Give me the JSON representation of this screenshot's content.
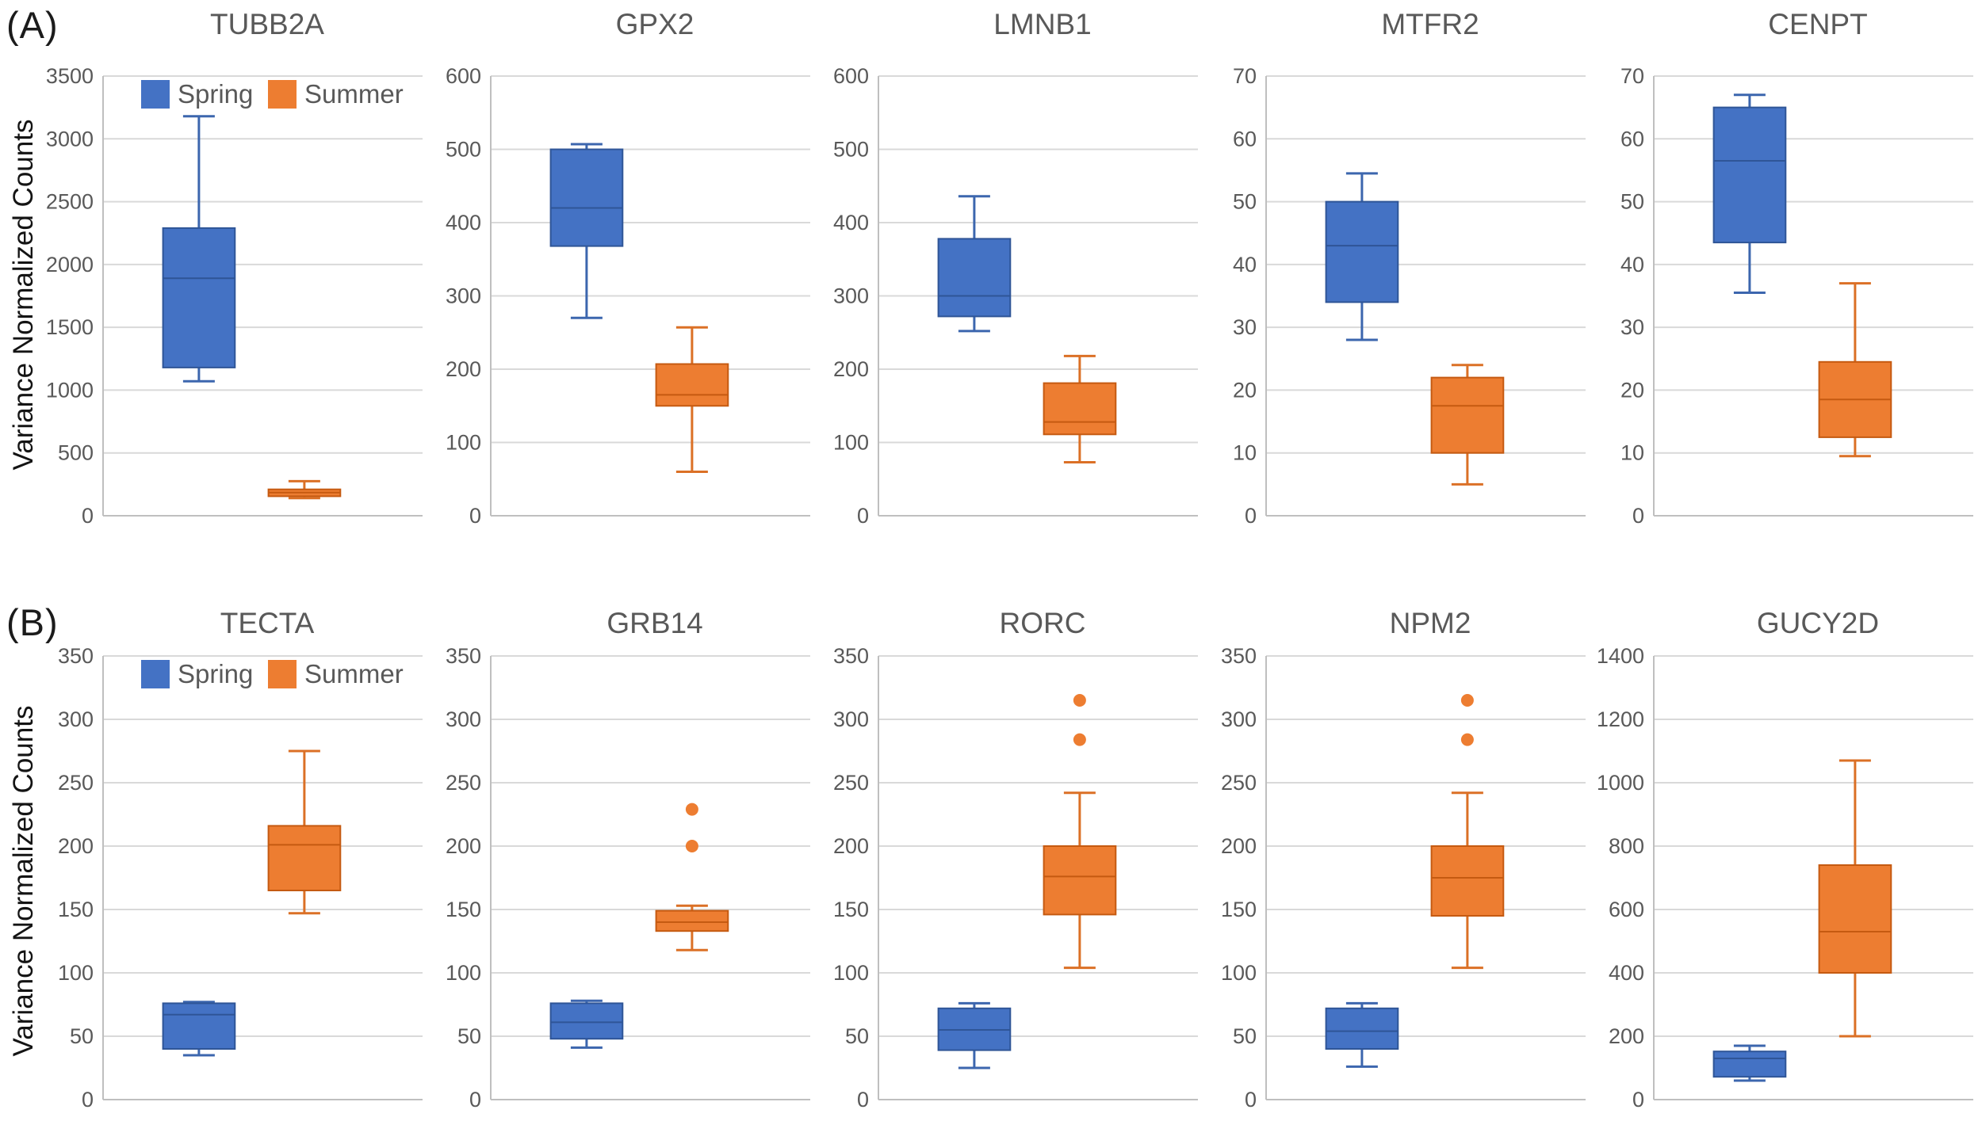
{
  "figure": {
    "description": "Box plots of variance normalized counts for ten genes, Spring vs Summer",
    "background": "#ffffff"
  },
  "legend": {
    "spring_label": "Spring",
    "summer_label": "Summer"
  },
  "colors": {
    "spring_fill": "#4472C4",
    "spring_stroke": "#2F5597",
    "spring_whisker": "#3C66AE",
    "summer_fill": "#ED7D31",
    "summer_stroke": "#C55A11",
    "summer_whisker": "#DB7026",
    "gridline": "#D9D9D9",
    "axis_line": "#BFBFBF",
    "tick_text": "#595959",
    "title_text": "#595959",
    "panel_text": "#1b1b1b"
  },
  "rows": {
    "a": {
      "panel_label": "(A)",
      "y_axis_label": "Variance Normalized Counts"
    },
    "b": {
      "panel_label": "(B)",
      "y_axis_label": "Variance Normalized Counts"
    }
  },
  "chart_data": [
    {
      "type": "box",
      "row": "a",
      "title": "TUBB2A",
      "ymin": 0,
      "ymax": 3500,
      "ystep": 500,
      "grid": true,
      "legend": true,
      "legend_position": "top-left",
      "categories": [
        "Spring",
        "Summer"
      ],
      "series": [
        {
          "name": "Spring",
          "min": 1070,
          "q1": 1180,
          "median": 1890,
          "q3": 2290,
          "max": 3180,
          "outliers": []
        },
        {
          "name": "Summer",
          "min": 140,
          "q1": 155,
          "median": 185,
          "q3": 210,
          "max": 275,
          "outliers": []
        }
      ]
    },
    {
      "type": "box",
      "row": "a",
      "title": "GPX2",
      "ymin": 0,
      "ymax": 600,
      "ystep": 100,
      "grid": true,
      "legend": false,
      "categories": [
        "Spring",
        "Summer"
      ],
      "series": [
        {
          "name": "Spring",
          "min": 270,
          "q1": 368,
          "median": 420,
          "q3": 500,
          "max": 507,
          "outliers": []
        },
        {
          "name": "Summer",
          "min": 60,
          "q1": 150,
          "median": 165,
          "q3": 207,
          "max": 257,
          "outliers": []
        }
      ]
    },
    {
      "type": "box",
      "row": "a",
      "title": "LMNB1",
      "ymin": 0,
      "ymax": 600,
      "ystep": 100,
      "grid": true,
      "legend": false,
      "categories": [
        "Spring",
        "Summer"
      ],
      "series": [
        {
          "name": "Spring",
          "min": 252,
          "q1": 272,
          "median": 300,
          "q3": 378,
          "max": 436,
          "outliers": []
        },
        {
          "name": "Summer",
          "min": 73,
          "q1": 111,
          "median": 128,
          "q3": 181,
          "max": 218,
          "outliers": []
        }
      ]
    },
    {
      "type": "box",
      "row": "a",
      "title": "MTFR2",
      "ymin": 0,
      "ymax": 70,
      "ystep": 10,
      "grid": true,
      "legend": false,
      "categories": [
        "Spring",
        "Summer"
      ],
      "series": [
        {
          "name": "Spring",
          "min": 28,
          "q1": 34,
          "median": 43,
          "q3": 50,
          "max": 54.5,
          "outliers": []
        },
        {
          "name": "Summer",
          "min": 5,
          "q1": 10,
          "median": 17.5,
          "q3": 22,
          "max": 24,
          "outliers": []
        }
      ]
    },
    {
      "type": "box",
      "row": "a",
      "title": "CENPT",
      "ymin": 0,
      "ymax": 70,
      "ystep": 10,
      "grid": true,
      "legend": false,
      "categories": [
        "Spring",
        "Summer"
      ],
      "series": [
        {
          "name": "Spring",
          "min": 35.5,
          "q1": 43.5,
          "median": 56.5,
          "q3": 65,
          "max": 67,
          "outliers": []
        },
        {
          "name": "Summer",
          "min": 9.5,
          "q1": 12.5,
          "median": 18.5,
          "q3": 24.5,
          "max": 37,
          "outliers": []
        }
      ]
    },
    {
      "type": "box",
      "row": "b",
      "title": "TECTA",
      "ymin": 0,
      "ymax": 350,
      "ystep": 50,
      "grid": true,
      "legend": true,
      "legend_position": "top-left",
      "categories": [
        "Spring",
        "Summer"
      ],
      "series": [
        {
          "name": "Spring",
          "min": 35,
          "q1": 40,
          "median": 67,
          "q3": 76,
          "max": 77,
          "outliers": []
        },
        {
          "name": "Summer",
          "min": 147,
          "q1": 165,
          "median": 201,
          "q3": 216,
          "max": 275,
          "outliers": []
        }
      ]
    },
    {
      "type": "box",
      "row": "b",
      "title": "GRB14",
      "ymin": 0,
      "ymax": 350,
      "ystep": 50,
      "grid": true,
      "legend": false,
      "categories": [
        "Spring",
        "Summer"
      ],
      "series": [
        {
          "name": "Spring",
          "min": 41,
          "q1": 48,
          "median": 61,
          "q3": 76,
          "max": 78,
          "outliers": []
        },
        {
          "name": "Summer",
          "min": 118,
          "q1": 133,
          "median": 140,
          "q3": 149,
          "max": 153,
          "outliers": [
            229,
            200
          ]
        }
      ]
    },
    {
      "type": "box",
      "row": "b",
      "title": "RORC",
      "ymin": 0,
      "ymax": 350,
      "ystep": 50,
      "grid": true,
      "legend": false,
      "categories": [
        "Spring",
        "Summer"
      ],
      "series": [
        {
          "name": "Spring",
          "min": 25,
          "q1": 39,
          "median": 55,
          "q3": 72,
          "max": 76,
          "outliers": []
        },
        {
          "name": "Summer",
          "min": 104,
          "q1": 146,
          "median": 176,
          "q3": 200,
          "max": 242,
          "outliers": [
            315,
            284
          ]
        }
      ]
    },
    {
      "type": "box",
      "row": "b",
      "title": "NPM2",
      "ymin": 0,
      "ymax": 350,
      "ystep": 50,
      "grid": true,
      "legend": false,
      "categories": [
        "Spring",
        "Summer"
      ],
      "series": [
        {
          "name": "Spring",
          "min": 26,
          "q1": 40,
          "median": 54,
          "q3": 72,
          "max": 76,
          "outliers": []
        },
        {
          "name": "Summer",
          "min": 104,
          "q1": 145,
          "median": 175,
          "q3": 200,
          "max": 242,
          "outliers": [
            315,
            284
          ]
        }
      ]
    },
    {
      "type": "box",
      "row": "b",
      "title": "GUCY2D",
      "ymin": 0,
      "ymax": 1400,
      "ystep": 200,
      "grid": true,
      "legend": false,
      "categories": [
        "Spring",
        "Summer"
      ],
      "series": [
        {
          "name": "Spring",
          "min": 60,
          "q1": 72,
          "median": 130,
          "q3": 152,
          "max": 170,
          "outliers": []
        },
        {
          "name": "Summer",
          "min": 200,
          "q1": 400,
          "median": 530,
          "q3": 740,
          "max": 1070,
          "outliers": []
        }
      ]
    }
  ]
}
